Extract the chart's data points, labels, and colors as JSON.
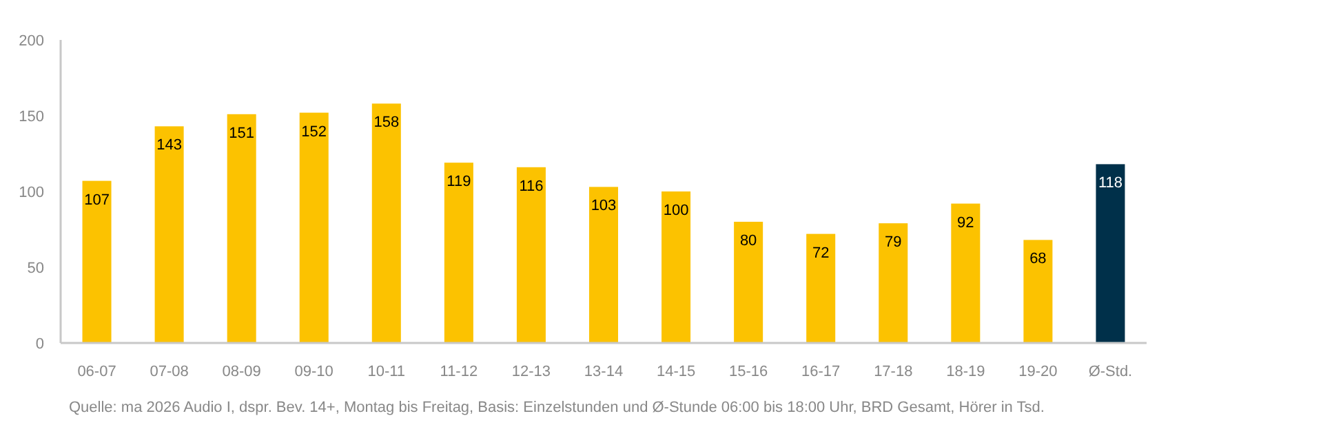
{
  "chart_data": {
    "type": "bar",
    "categories": [
      "06-07",
      "07-08",
      "08-09",
      "09-10",
      "10-11",
      "11-12",
      "12-13",
      "13-14",
      "14-15",
      "15-16",
      "16-17",
      "17-18",
      "18-19",
      "19-20",
      "Ø-Std."
    ],
    "values": [
      107,
      143,
      151,
      152,
      158,
      119,
      116,
      103,
      100,
      80,
      72,
      79,
      92,
      68,
      118
    ],
    "colors": [
      "#fcc200",
      "#fcc200",
      "#fcc200",
      "#fcc200",
      "#fcc200",
      "#fcc200",
      "#fcc200",
      "#fcc200",
      "#fcc200",
      "#fcc200",
      "#fcc200",
      "#fcc200",
      "#fcc200",
      "#fcc200",
      "#00304a"
    ],
    "ylim": [
      0,
      200
    ],
    "yticks": [
      0,
      50,
      100,
      150,
      200
    ],
    "grid": false,
    "data_labels": true,
    "annotations": [
      "Quelle: ma 2026 Audio I, dspr. Bev. 14+, Montag bis Freitag, Basis: Einzelstunden und Ø-Stunde 06:00 bis 18:00 Uhr, BRD Gesamt, Hörer in Tsd."
    ]
  }
}
